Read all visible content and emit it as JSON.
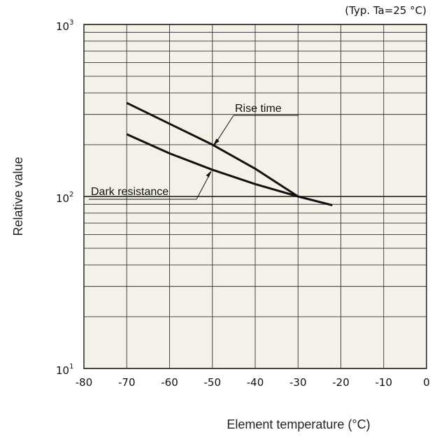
{
  "chart_data": {
    "type": "line",
    "note": "(Typ. Ta=25 °C)",
    "xlabel": "Element temperature (°C)",
    "ylabel": "Relative value",
    "x_ticks": [
      -80,
      -70,
      -60,
      -50,
      -40,
      -30,
      -20,
      -10,
      0
    ],
    "xlim": [
      -80,
      0
    ],
    "ylim": [
      10,
      1000
    ],
    "yscale": "log",
    "y_ticks": [
      {
        "value": 10,
        "base": "10",
        "exp": "1"
      },
      {
        "value": 100,
        "base": "10",
        "exp": "2"
      },
      {
        "value": 1000,
        "base": "10",
        "exp": "3"
      }
    ],
    "grid": true,
    "colors": {
      "background": "#f4f2e8",
      "grid": "#333333",
      "line": "#111111"
    },
    "series": [
      {
        "name": "Rise time",
        "x": [
          -70,
          -50,
          -40,
          -30
        ],
        "y": [
          350,
          200,
          145,
          100
        ]
      },
      {
        "name": "Dark resistance",
        "x": [
          -70,
          -60,
          -50,
          -40,
          -30,
          -22
        ],
        "y": [
          230,
          178,
          143,
          118,
          100,
          89
        ]
      }
    ]
  }
}
